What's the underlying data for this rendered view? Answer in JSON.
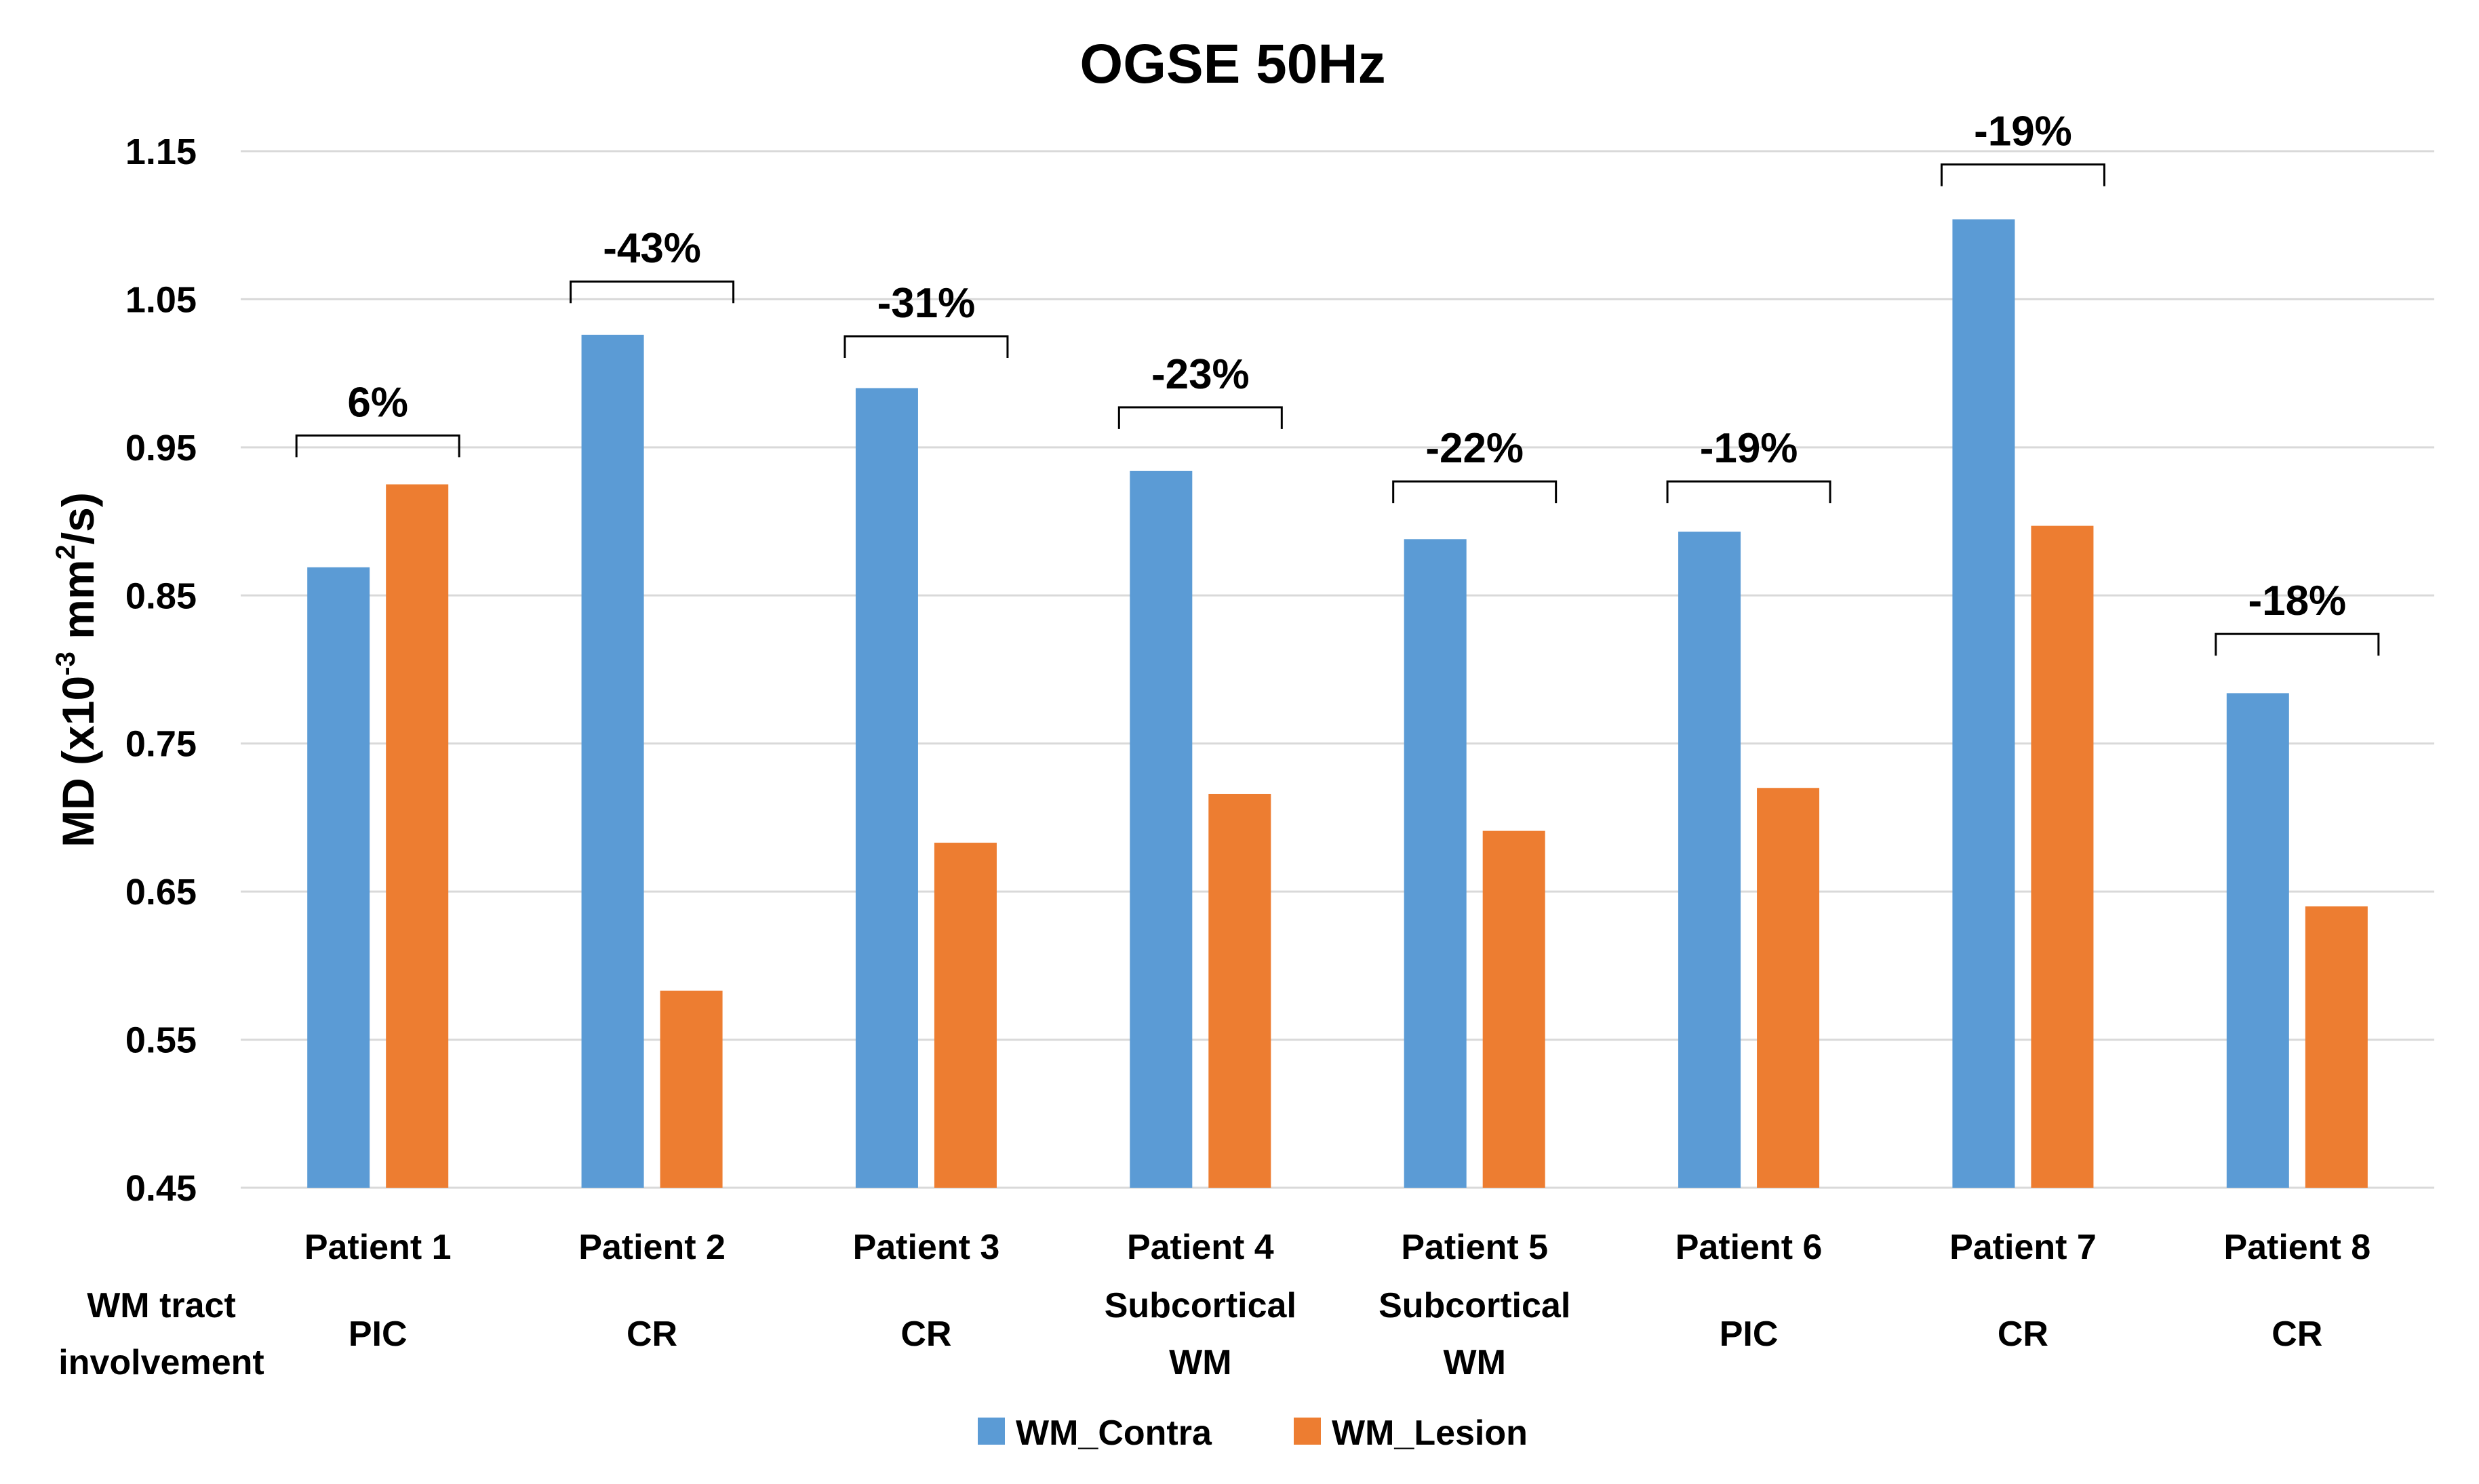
{
  "chart_data": {
    "type": "bar",
    "title": "OGSE 50Hz",
    "ylabel": {
      "main": "MD (x10",
      "exp": "-3",
      "unit": " mm",
      "unit_exp": "2",
      "tail": "/s)"
    },
    "xlabel": "",
    "ylim": [
      0.45,
      1.15
    ],
    "yticks": [
      0.45,
      0.55,
      0.65,
      0.75,
      0.85,
      0.95,
      1.05,
      1.15
    ],
    "ytick_labels": [
      "0.45",
      "0.55",
      "0.65",
      "0.75",
      "0.85",
      "0.95",
      "1.05",
      "1.15"
    ],
    "grid": true,
    "categories": [
      "Patient 1",
      "Patient 2",
      "Patient 3",
      "Patient 4",
      "Patient 5",
      "Patient 6",
      "Patient 7",
      "Patient 8"
    ],
    "row_header": [
      "WM tract",
      "involvement"
    ],
    "tract_involvement": [
      [
        "PIC"
      ],
      [
        "CR"
      ],
      [
        "CR"
      ],
      [
        "Subcortical",
        "WM"
      ],
      [
        "Subcortical",
        "WM"
      ],
      [
        "PIC"
      ],
      [
        "CR"
      ],
      [
        "CR"
      ]
    ],
    "series": [
      {
        "name": "WM_Contra",
        "color": "#5B9BD5",
        "values": [
          0.869,
          1.026,
          0.99,
          0.934,
          0.888,
          0.893,
          1.104,
          0.784
        ]
      },
      {
        "name": "WM_Lesion",
        "color": "#ED7D31",
        "values": [
          0.925,
          0.583,
          0.683,
          0.716,
          0.691,
          0.72,
          0.897,
          0.64
        ]
      }
    ],
    "percent_change_labels": [
      "6%",
      "-43%",
      "-31%",
      "-23%",
      "-22%",
      "-19%",
      "-19%",
      "-18%"
    ],
    "bracket_level": [
      0.958,
      1.062,
      1.025,
      0.977,
      0.927,
      0.927,
      1.141,
      0.824
    ],
    "legend_position": "bottom",
    "gridline_color": "#D9D9D9"
  }
}
